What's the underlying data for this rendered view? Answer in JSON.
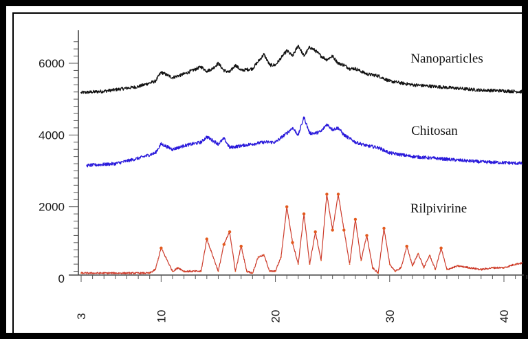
{
  "chart_data": {
    "type": "line",
    "title": "",
    "xlabel": "",
    "ylabel": "",
    "xlim": [
      3,
      42
    ],
    "ylim": [
      0,
      6600
    ],
    "x_ticks": [
      "3",
      "10",
      "20",
      "30",
      "40"
    ],
    "y_ticks": [
      "0",
      "2000",
      "4000",
      "6000"
    ],
    "grid": false,
    "series": [
      {
        "name": "Nanoparticles",
        "color": "#111111",
        "baseline": 5300,
        "x": [
          3,
          5,
          8,
          9.5,
          10,
          11,
          12,
          13.5,
          14,
          14.5,
          15,
          15.5,
          16,
          16.5,
          17,
          18,
          19,
          19.5,
          20,
          21,
          21.5,
          22,
          22.5,
          23,
          23.5,
          24,
          24.5,
          25,
          25.5,
          26,
          26.5,
          27,
          28,
          29,
          30,
          31,
          32,
          34,
          36,
          38,
          40,
          42
        ],
        "values": [
          5180,
          5220,
          5350,
          5500,
          5750,
          5600,
          5700,
          5900,
          5780,
          5850,
          6000,
          5800,
          5750,
          5950,
          5800,
          5850,
          6250,
          5950,
          5950,
          6350,
          6200,
          6500,
          6200,
          6450,
          6350,
          6200,
          6100,
          6200,
          6000,
          5950,
          5850,
          5850,
          5700,
          5650,
          5500,
          5450,
          5400,
          5350,
          5300,
          5250,
          5230,
          5200
        ]
      },
      {
        "name": "Chitosan",
        "color": "#2a1adb",
        "baseline": 3300,
        "x": [
          3.5,
          6,
          8,
          9.5,
          10,
          11,
          12,
          13.5,
          14,
          15,
          15.5,
          16,
          17,
          18,
          19,
          20,
          21,
          21.5,
          22,
          22.5,
          23,
          23.5,
          24,
          24.5,
          25,
          25.5,
          26,
          27,
          28,
          29,
          30,
          31,
          32,
          34,
          36,
          38,
          40,
          42
        ],
        "values": [
          3150,
          3200,
          3350,
          3500,
          3750,
          3600,
          3700,
          3800,
          3950,
          3750,
          3900,
          3650,
          3700,
          3750,
          3800,
          3800,
          4050,
          4200,
          4000,
          4500,
          4050,
          4050,
          4100,
          4300,
          4150,
          4200,
          4000,
          3800,
          3700,
          3650,
          3500,
          3450,
          3400,
          3350,
          3300,
          3250,
          3230,
          3200
        ]
      },
      {
        "name": "Rilpivirine",
        "color": "#cc3a2a",
        "baseline": 150,
        "x": [
          3,
          9,
          9.5,
          10,
          11,
          11.5,
          12,
          13.5,
          14,
          15,
          15.5,
          16,
          16.5,
          17,
          17.5,
          18,
          18.5,
          19,
          19.5,
          20,
          20.5,
          21,
          21.5,
          22,
          22.5,
          23,
          23.5,
          24,
          24.5,
          25,
          25.5,
          26,
          26.5,
          27,
          27.5,
          28,
          28.5,
          29,
          29.5,
          30,
          30.5,
          31,
          31.5,
          32,
          32.5,
          33,
          33.5,
          34,
          34.5,
          35,
          36,
          37,
          38,
          39,
          40,
          41,
          42
        ],
        "values": [
          150,
          150,
          250,
          850,
          200,
          300,
          200,
          200,
          1100,
          200,
          950,
          1300,
          200,
          900,
          200,
          150,
          600,
          650,
          200,
          200,
          600,
          2000,
          1000,
          400,
          1800,
          400,
          1300,
          500,
          2350,
          1350,
          2350,
          1350,
          400,
          1650,
          500,
          1200,
          300,
          150,
          1400,
          400,
          200,
          300,
          900,
          350,
          700,
          300,
          650,
          250,
          850,
          250,
          350,
          300,
          250,
          300,
          300,
          400,
          450
        ]
      }
    ]
  }
}
